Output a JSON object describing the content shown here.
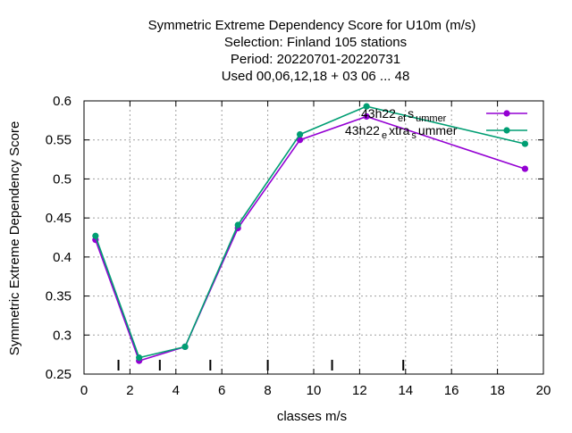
{
  "chart_data": {
    "type": "line",
    "title_lines": [
      "Symmetric Extreme Dependency Score  for U10m (m/s)",
      "Selection: Finland    105 stations",
      "Period: 20220701-20220731",
      "Used  00,06,12,18  + 03 06 ... 48"
    ],
    "xlabel": "classes m/s",
    "ylabel": "Symmetric Extreme Dependency Score",
    "xlim": [
      0,
      20
    ],
    "ylim": [
      0.25,
      0.6
    ],
    "xticks": [
      0,
      2,
      4,
      6,
      8,
      10,
      12,
      14,
      16,
      18,
      20
    ],
    "yticks": [
      0.25,
      0.3,
      0.35,
      0.4,
      0.45,
      0.5,
      0.55,
      0.6
    ],
    "grid": true,
    "legend_position": "top-right",
    "class_boundaries": [
      1.5,
      3.3,
      5.5,
      8.0,
      10.8,
      13.9
    ],
    "series": [
      {
        "name": "43h22_ef_summer",
        "legend_parts": [
          "43h22",
          "ef",
          "s",
          "ummer"
        ],
        "color": "#9400d3",
        "x": [
          0.5,
          2.4,
          4.4,
          6.7,
          9.4,
          12.3,
          19.2
        ],
        "y": [
          0.422,
          0.267,
          0.285,
          0.437,
          0.55,
          0.58,
          0.513
        ]
      },
      {
        "name": "43h22_extra_summer",
        "legend_parts": [
          "43h22",
          "e",
          "xtra",
          "s",
          "ummer"
        ],
        "color": "#009e73",
        "x": [
          0.5,
          2.4,
          4.4,
          6.7,
          9.4,
          12.3,
          19.2
        ],
        "y": [
          0.427,
          0.271,
          0.285,
          0.441,
          0.557,
          0.593,
          0.545
        ]
      }
    ]
  }
}
